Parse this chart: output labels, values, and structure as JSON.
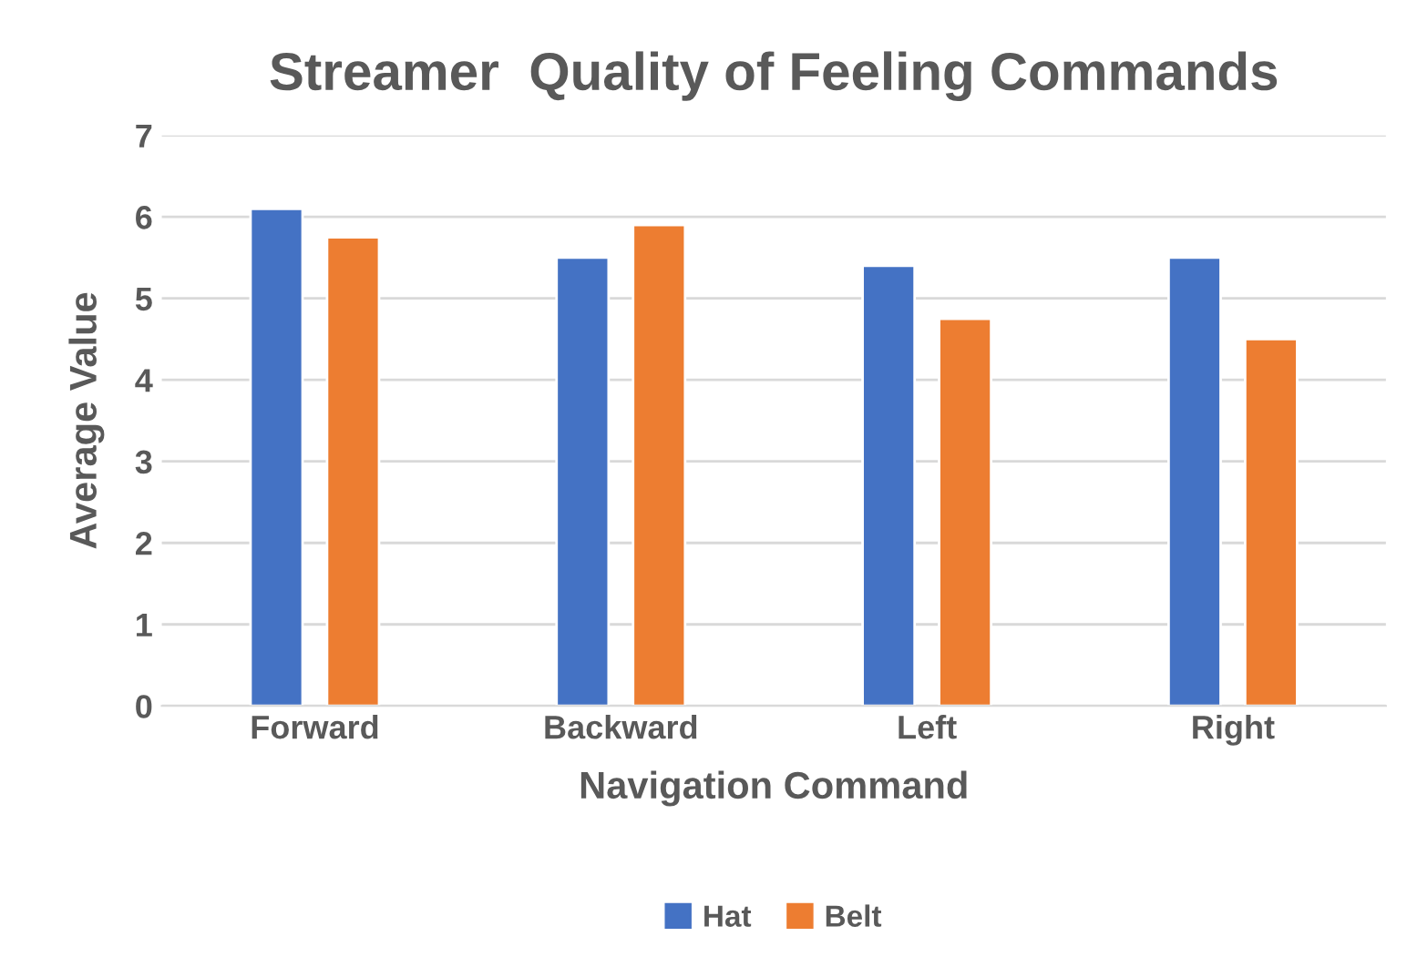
{
  "chart_data": {
    "type": "bar",
    "title": "Streamer  Quality of Feeling Commands",
    "xlabel": "Navigation Command",
    "ylabel": "Average Value",
    "categories": [
      "Forward",
      "Backward",
      "Left",
      "Right"
    ],
    "series": [
      {
        "name": "Hat",
        "color": "#4472c4",
        "values": [
          6.1,
          5.5,
          5.4,
          5.5
        ]
      },
      {
        "name": "Belt",
        "color": "#ed7d31",
        "values": [
          5.75,
          5.9,
          4.75,
          4.5
        ]
      }
    ],
    "ylim": [
      0,
      7
    ],
    "yticks": [
      0,
      1,
      2,
      3,
      4,
      5,
      6,
      7
    ],
    "grid": "y",
    "legend": "bottom"
  }
}
